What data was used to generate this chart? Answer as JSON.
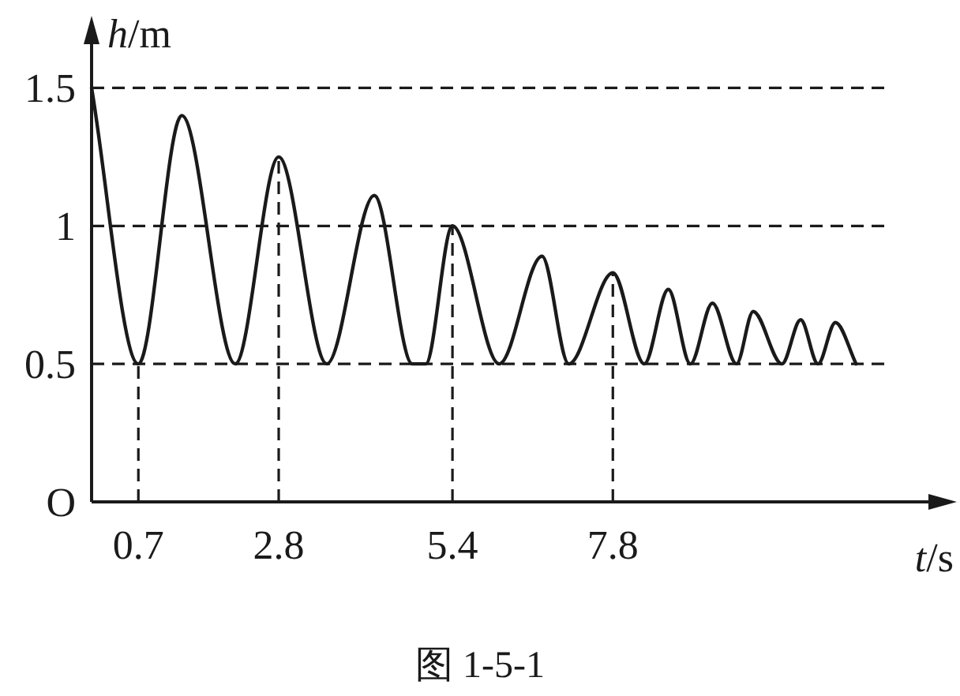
{
  "chart_data": {
    "type": "line",
    "xlabel": "t/s",
    "ylabel": "h/m",
    "annotations": [
      "图 1-5-1"
    ],
    "xlim": [
      0,
      12.9
    ],
    "ylim": [
      0,
      1.75
    ],
    "xticks": [
      0.7,
      2.8,
      5.4,
      7.8
    ],
    "yticks": [
      {
        "value": 0,
        "label": "O"
      },
      0.5,
      1,
      1.5
    ],
    "line_style": "solid",
    "series": [
      {
        "color": "#1a1a1a",
        "x": [
          0,
          0.7,
          1.35,
          2.15,
          2.8,
          3.52,
          4.23,
          4.8,
          5.0,
          5.4,
          6.1,
          6.74,
          7.14,
          7.8,
          8.27,
          8.63,
          8.96,
          9.29,
          9.65,
          9.9,
          10.33,
          10.61,
          10.87,
          11.13,
          11.44
        ],
        "values": [
          1.5,
          0.5,
          1.4,
          0.5,
          1.25,
          0.5,
          1.11,
          0.5,
          0.5,
          1.0,
          0.5,
          0.89,
          0.5,
          0.83,
          0.5,
          0.77,
          0.5,
          0.72,
          0.5,
          0.69,
          0.5,
          0.66,
          0.5,
          0.65,
          0.5
        ]
      }
    ],
    "ref_lines": [
      {
        "axis": "y",
        "value": 0.5,
        "line_style": "dashed"
      },
      {
        "axis": "y",
        "value": 1,
        "line_style": "dashed"
      },
      {
        "axis": "y",
        "value": 1.5,
        "line_style": "dashed"
      },
      {
        "axis": "x",
        "value": 0.7,
        "line_style": "dashed"
      },
      {
        "axis": "x",
        "value": 2.8,
        "line_style": "dashed"
      },
      {
        "axis": "x",
        "value": 5.4,
        "line_style": "dashed"
      },
      {
        "axis": "x",
        "value": 7.8,
        "line_style": "dashed"
      }
    ]
  }
}
